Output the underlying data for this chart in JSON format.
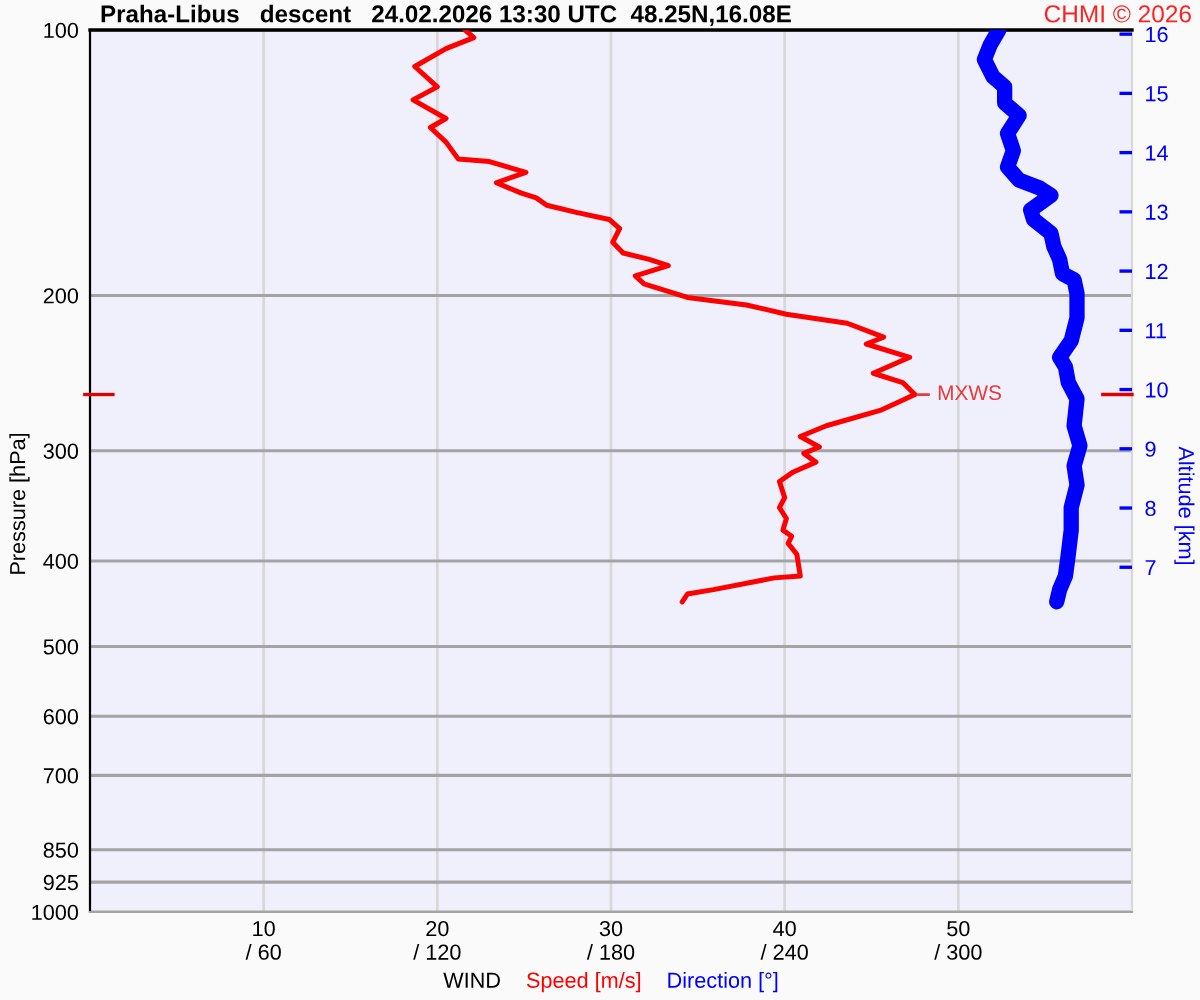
{
  "chart_data": {
    "type": "line",
    "title": "Praha-Libus   descent   24.02.2026 13:30 UTC  48.25N,16.08E",
    "xlabel": "WIND",
    "ylabel": "Pressure [hPa]",
    "y2label": "Altitude [km]",
    "annotations": [
      "CHMI © 2026",
      {
        "text": "MXWS",
        "x": 47.5,
        "y": 259
      }
    ],
    "series": [
      {
        "name": "Speed [m/s]",
        "color": "#ff0000",
        "x": [
          21.6,
          22.1,
          20.5,
          18.7,
          20.0,
          18.6,
          20.5,
          19.6,
          20.5,
          21.2,
          23.0,
          25.1,
          23.4,
          24.8,
          25.7,
          26.3,
          28.0,
          29.9,
          30.5,
          30.1,
          30.7,
          32.2,
          33.3,
          31.4,
          31.9,
          34.4,
          37.8,
          40.1,
          43.6,
          45.7,
          44.7,
          47.2,
          45.1,
          46.8,
          47.5,
          45.5,
          42.4,
          40.9,
          42.0,
          41.1,
          41.8,
          40.5,
          39.7,
          40.0,
          39.7,
          40.1,
          39.9,
          40.4,
          40.2,
          40.7,
          40.9,
          39.4,
          35.9,
          34.4,
          34.1
        ],
        "values": [
          100,
          102,
          105,
          110,
          116,
          120,
          126,
          129,
          134,
          140,
          141,
          145,
          149,
          153,
          155,
          158,
          161,
          164,
          168,
          174,
          179,
          182,
          185,
          190,
          194,
          201,
          205,
          210,
          215,
          223,
          227,
          235,
          245,
          251,
          259,
          270,
          281,
          289,
          297,
          302,
          309,
          317,
          325,
          339,
          348,
          358,
          369,
          375,
          382,
          393,
          416,
          418,
          431,
          436,
          445
        ]
      },
      {
        "name": "Direction [°]",
        "color": "#0000ff",
        "axis": "x2",
        "x": [
          314,
          311,
          309,
          312,
          316,
          316,
          321,
          317,
          319,
          317,
          321,
          328,
          332,
          325,
          326,
          332,
          333,
          335,
          336,
          340,
          341,
          341,
          339,
          335,
          337,
          338,
          341,
          340,
          342,
          340,
          341,
          339,
          339,
          338,
          337,
          335,
          334
        ],
        "values": [
          100,
          104,
          108,
          113,
          116,
          121,
          125,
          131,
          137,
          143,
          148,
          151,
          154,
          160,
          164,
          170,
          176,
          182,
          189,
          192,
          199,
          212,
          225,
          235,
          241,
          251,
          262,
          281,
          296,
          312,
          328,
          348,
          369,
          393,
          416,
          431,
          445
        ]
      }
    ],
    "xlim": [
      0,
      60
    ],
    "xticks": [
      10,
      20,
      30,
      40,
      50
    ],
    "x2lim": [
      0,
      360
    ],
    "x2ticks": [
      {
        "value": 60,
        "label": "/ 60"
      },
      {
        "value": 120,
        "label": "/ 120"
      },
      {
        "value": 180,
        "label": "/ 180"
      },
      {
        "value": 240,
        "label": "/ 240"
      },
      {
        "value": 300,
        "label": "/ 300"
      }
    ],
    "ylim": [
      1000,
      100
    ],
    "yticks": [
      100,
      200,
      300,
      400,
      500,
      600,
      700,
      850,
      925,
      1000
    ],
    "y2lim": [
      1.18,
      16.07
    ],
    "y2ticks": [
      7,
      8,
      9,
      10,
      11,
      12,
      13,
      14,
      15,
      16
    ],
    "log": "y",
    "grid": true,
    "legend": "bottom",
    "marker": "none",
    "line_style": "solid"
  }
}
